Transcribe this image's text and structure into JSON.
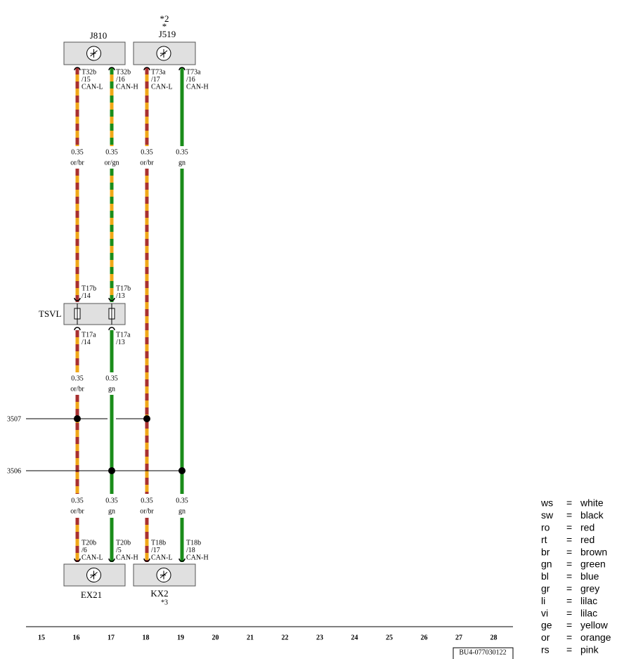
{
  "components": [
    {
      "label": "J810"
    },
    {
      "label": "J519",
      "notes": [
        "*2",
        "*"
      ]
    },
    {
      "label": "TSVL"
    },
    {
      "label": "EX21"
    },
    {
      "label": "KX2",
      "note": "*3"
    }
  ],
  "connectors": [
    {
      "pin": "T32b",
      "num": "/15",
      "signal": "CAN-L"
    },
    {
      "pin": "T32b",
      "num": "/16",
      "signal": "CAN-H"
    },
    {
      "pin": "T73a",
      "num": "/17",
      "signal": "CAN-L"
    },
    {
      "pin": "T73a",
      "num": "/16",
      "signal": "CAN-H"
    },
    {
      "pin": "T17b",
      "num": "/14"
    },
    {
      "pin": "T17b",
      "num": "/13"
    },
    {
      "pin": "T17a",
      "num": "/14"
    },
    {
      "pin": "T17a",
      "num": "/13"
    },
    {
      "pin": "T20b",
      "num": "/6",
      "signal": "CAN-L"
    },
    {
      "pin": "T20b",
      "num": "/5",
      "signal": "CAN-H"
    },
    {
      "pin": "T18b",
      "num": "/17",
      "signal": "CAN-L"
    },
    {
      "pin": "T18b",
      "num": "/18",
      "signal": "CAN-H"
    }
  ],
  "wire_labels": [
    {
      "size": "0.35",
      "color": "or/br"
    },
    {
      "size": "0.35",
      "color": "or/gn"
    },
    {
      "size": "0.35",
      "color": "or/br"
    },
    {
      "size": "0.35",
      "color": "gn"
    },
    {
      "size": "0.35",
      "color": "or/br"
    },
    {
      "size": "0.35",
      "color": "gn"
    },
    {
      "size": "0.35",
      "color": "or/br"
    },
    {
      "size": "0.35",
      "color": "gn"
    },
    {
      "size": "0.35",
      "color": "or/br"
    },
    {
      "size": "0.35",
      "color": "gn"
    }
  ],
  "bus_lines": [
    "3507",
    "3506"
  ],
  "grid_numbers": [
    "15",
    "16",
    "17",
    "18",
    "19",
    "20",
    "21",
    "22",
    "23",
    "24",
    "25",
    "26",
    "27",
    "28"
  ],
  "doc_id": "BU4-077030122",
  "legend_separator": "=",
  "legend": [
    {
      "code": "ws",
      "name": "white"
    },
    {
      "code": "sw",
      "name": "black"
    },
    {
      "code": "ro",
      "name": "red"
    },
    {
      "code": "rt",
      "name": "red"
    },
    {
      "code": "br",
      "name": "brown"
    },
    {
      "code": "gn",
      "name": "green"
    },
    {
      "code": "bl",
      "name": "blue"
    },
    {
      "code": "gr",
      "name": "grey"
    },
    {
      "code": "li",
      "name": "lilac"
    },
    {
      "code": "vi",
      "name": "lilac"
    },
    {
      "code": "ge",
      "name": "yellow"
    },
    {
      "code": "or",
      "name": "orange"
    },
    {
      "code": "rs",
      "name": "pink"
    }
  ]
}
